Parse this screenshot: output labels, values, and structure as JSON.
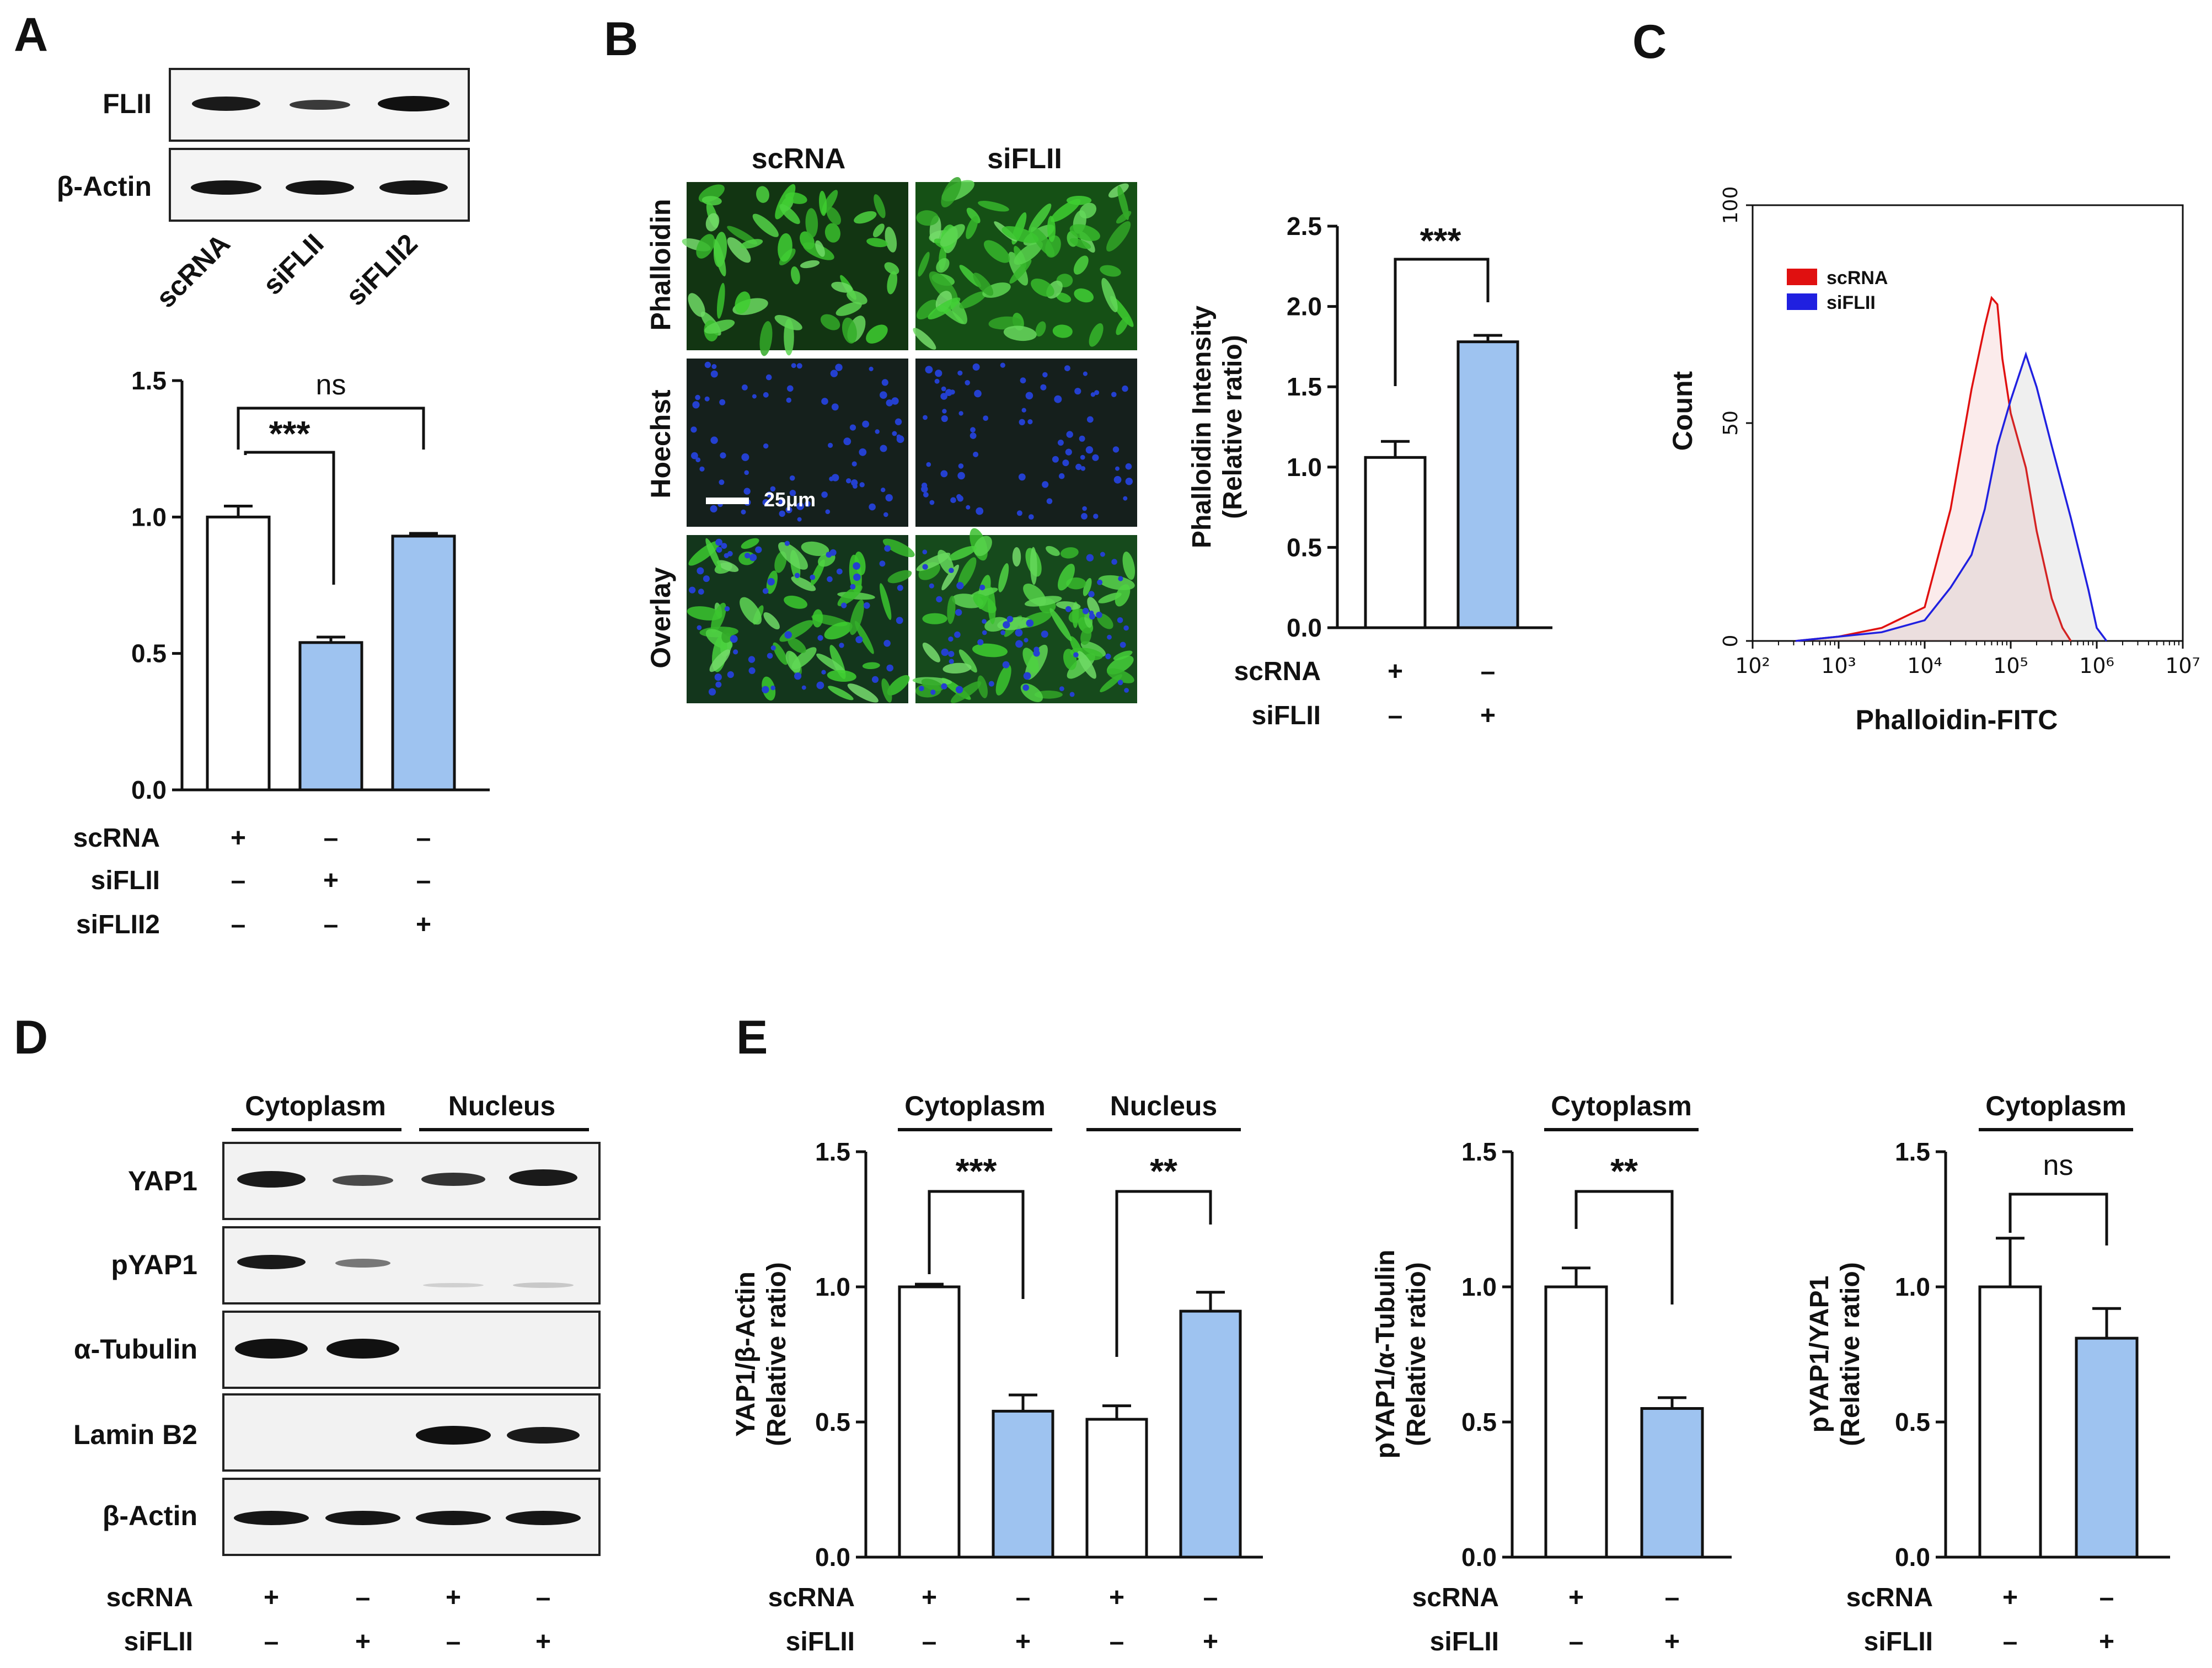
{
  "colors": {
    "control_bar": "#ffffff",
    "treated_bar": "#9ec3f0",
    "scrna_hist": "#e01010",
    "siflii_hist": "#2020e0",
    "phalloidin": "#2f9a2f",
    "hoechst": "#2440d0"
  },
  "panel_labels": {
    "a": "A",
    "b": "B",
    "c": "C",
    "d": "D",
    "e": "E"
  },
  "panelA": {
    "blot_labels": [
      "FLII",
      "β-Actin"
    ],
    "lane_labels": [
      "scRNA",
      "siFLII",
      "siFLII2"
    ],
    "sig_labels": [
      "ns",
      "***"
    ],
    "condition_labels": [
      "scRNA",
      "siFLII",
      "siFLII2"
    ],
    "conditions": [
      [
        "+",
        "–",
        "–"
      ],
      [
        "–",
        "+",
        "–"
      ],
      [
        "–",
        "–",
        "+"
      ]
    ]
  },
  "panelB": {
    "columns": [
      "scRNA",
      "siFLII"
    ],
    "rows": [
      "Phalloidin",
      "Hoechst",
      "Overlay"
    ],
    "scale_bar": "25μm",
    "sig_label": "***",
    "condition_labels": [
      "scRNA",
      "siFLII"
    ],
    "conditions": [
      [
        "+",
        "–"
      ],
      [
        "–",
        "+"
      ]
    ]
  },
  "panelC": {
    "legend": [
      "scRNA",
      "siFLII"
    ]
  },
  "panelD": {
    "groups": [
      "Cytoplasm",
      "Nucleus"
    ],
    "blot_labels": [
      "YAP1",
      "pYAP1",
      "α-Tubulin",
      "Lamin B2",
      "β-Actin"
    ],
    "condition_labels": [
      "scRNA",
      "siFLII"
    ],
    "conditions": [
      [
        "+",
        "–",
        "+",
        "–"
      ],
      [
        "–",
        "+",
        "–",
        "+"
      ]
    ]
  },
  "panelE": {
    "group_labels": [
      "Cytoplasm",
      "Nucleus",
      "Cytoplasm",
      "Cytoplasm"
    ],
    "sig_labels": [
      "***",
      "**",
      "**",
      "ns"
    ],
    "condition_labels": [
      "scRNA",
      "siFLII"
    ],
    "conditions": [
      [
        "+",
        "–"
      ],
      [
        "–",
        "+"
      ]
    ]
  },
  "chart_data": [
    {
      "id": "A",
      "type": "bar",
      "categories": [
        "scRNA",
        "siFLII",
        "siFLII2"
      ],
      "values": [
        1.0,
        0.54,
        0.93
      ],
      "errors": [
        0.04,
        0.02,
        0.01
      ],
      "ylim": [
        0,
        1.5
      ],
      "yticks": [
        "0.0",
        "0.5",
        "1.0",
        "1.5"
      ],
      "ylabel": "",
      "xlabel": ""
    },
    {
      "id": "B",
      "type": "bar",
      "categories": [
        "scRNA",
        "siFLII"
      ],
      "values": [
        1.06,
        1.78
      ],
      "errors": [
        0.1,
        0.04
      ],
      "ylim": [
        0,
        2.5
      ],
      "yticks": [
        "0.0",
        "0.5",
        "1.0",
        "1.5",
        "2.0",
        "2.5"
      ],
      "ylabel": [
        "Phalloidin Intensity",
        "(Relative ratio)"
      ],
      "xlabel": ""
    },
    {
      "id": "C",
      "type": "line",
      "xlabel": "Phalloidin-FITC",
      "ylabel": "Count",
      "x_scale": "log",
      "xlim": [
        100,
        10000000
      ],
      "ylim": [
        0,
        100
      ],
      "xticks": [
        "10²",
        "10³",
        "10⁴",
        "10⁵",
        "10⁶",
        "10⁷"
      ],
      "yticks": [
        "0",
        "50",
        "100"
      ],
      "series": [
        {
          "name": "scRNA",
          "x": [
            316,
            1000,
            3162,
            10000,
            20000,
            35000,
            50000,
            60000,
            70000,
            80000,
            100000,
            150000,
            200000,
            300000,
            400000,
            500000
          ],
          "y": [
            0,
            1,
            3,
            8,
            30,
            58,
            72,
            79,
            77,
            65,
            52,
            40,
            25,
            10,
            3,
            0
          ]
        },
        {
          "name": "siFLII",
          "x": [
            316,
            1000,
            3162,
            10000,
            20000,
            35000,
            50000,
            70000,
            100000,
            150000,
            200000,
            300000,
            500000,
            800000,
            1000000,
            1300000
          ],
          "y": [
            0,
            1,
            2,
            5,
            12,
            20,
            30,
            45,
            55,
            66,
            58,
            45,
            28,
            12,
            3,
            0
          ]
        }
      ]
    },
    {
      "id": "E1",
      "type": "bar",
      "categories": [
        "Cytoplasm scRNA",
        "Cytoplasm siFLII",
        "Nucleus scRNA",
        "Nucleus siFLII"
      ],
      "values": [
        1.0,
        0.54,
        0.51,
        0.91
      ],
      "errors": [
        0.01,
        0.06,
        0.05,
        0.07
      ],
      "ylim": [
        0,
        1.5
      ],
      "yticks": [
        "0.0",
        "0.5",
        "1.0",
        "1.5"
      ],
      "ylabel": [
        "YAP1/β-Actin",
        "(Relative ratio)"
      ],
      "xlabel": ""
    },
    {
      "id": "E2",
      "type": "bar",
      "categories": [
        "scRNA",
        "siFLII"
      ],
      "values": [
        1.0,
        0.55
      ],
      "errors": [
        0.07,
        0.04
      ],
      "ylim": [
        0,
        1.5
      ],
      "yticks": [
        "0.0",
        "0.5",
        "1.0",
        "1.5"
      ],
      "ylabel": [
        "pYAP1/α-Tubulin",
        "(Relative ratio)"
      ],
      "xlabel": ""
    },
    {
      "id": "E3",
      "type": "bar",
      "categories": [
        "scRNA",
        "siFLII"
      ],
      "values": [
        1.0,
        0.81
      ],
      "errors": [
        0.18,
        0.11
      ],
      "ylim": [
        0,
        1.5
      ],
      "yticks": [
        "0.0",
        "0.5",
        "1.0",
        "1.5"
      ],
      "ylabel": [
        "pYAP1/YAP1",
        "(Relative ratio)"
      ],
      "xlabel": ""
    }
  ]
}
